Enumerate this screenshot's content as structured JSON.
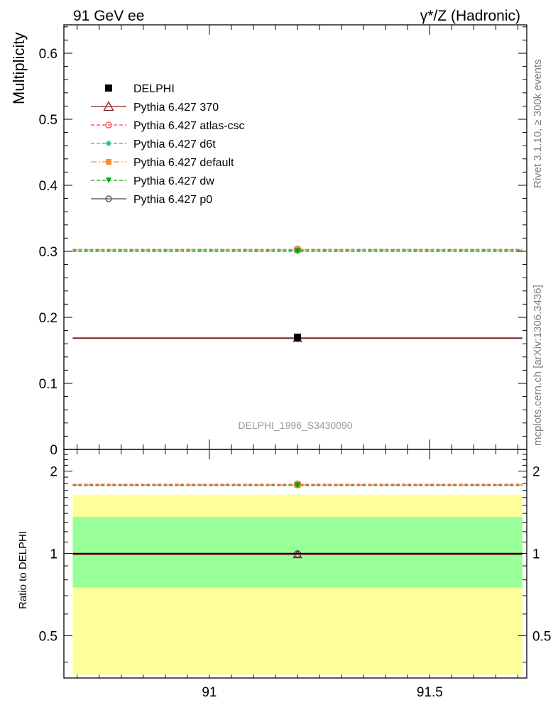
{
  "header": {
    "left_label": "91 GeV ee",
    "right_label": "γ*/Z (Hadronic)"
  },
  "side_labels": {
    "rivet": "Rivet 3.1.10, ≥ 300k events",
    "mcplots": "mcplots.cern.ch [arXiv:1306.3436]"
  },
  "analysis_id": "DELPHI_1996_S3430090",
  "chart_data": [
    {
      "panel": "main",
      "type": "scatter",
      "ylabel": "Multiplicity",
      "xlim": [
        90.67,
        91.72
      ],
      "ylim": [
        0,
        0.643
      ],
      "x_ticks": [
        91,
        91.5
      ],
      "x_tick_labels": [
        "91",
        "91.5"
      ],
      "y_ticks": [
        0,
        0.1,
        0.2,
        0.3,
        0.4,
        0.5,
        0.6
      ],
      "y_tick_labels": [
        "0",
        "0.1",
        "0.2",
        "0.3",
        "0.4",
        "0.5",
        "0.6"
      ],
      "bin": {
        "x": 91.2,
        "xlow": 90.69,
        "xhigh": 91.71
      },
      "legend_position": "top-left",
      "series": [
        {
          "name": "DELPHI",
          "y": 0.17,
          "color": "#000000",
          "marker": "filled-square",
          "line": "none"
        },
        {
          "name": "Pythia 6.427 370",
          "y": 0.168,
          "color": "#8b1a1a",
          "marker": "open-triangle",
          "line": "solid"
        },
        {
          "name": "Pythia 6.427 atlas-csc",
          "y": 0.303,
          "color": "#ff3b4e",
          "marker": "open-circle",
          "line": "dashed"
        },
        {
          "name": "Pythia 6.427 d6t",
          "y": 0.301,
          "color": "#19c38c",
          "marker": "star",
          "line": "dashed"
        },
        {
          "name": "Pythia 6.427 default",
          "y": 0.302,
          "color": "#ff8c2e",
          "marker": "filled-square",
          "line": "dashdot"
        },
        {
          "name": "Pythia 6.427 dw",
          "y": 0.3,
          "color": "#00aa00",
          "marker": "filled-triangle-down",
          "line": "dashed"
        },
        {
          "name": "Pythia 6.427 p0",
          "y": 0.169,
          "color": "#444444",
          "marker": "open-circle",
          "line": "solid"
        }
      ]
    },
    {
      "panel": "ratio",
      "type": "scatter",
      "ylabel": "Ratio to DELPHI",
      "xlim": [
        90.67,
        91.72
      ],
      "ylim": [
        0.35,
        2.4
      ],
      "log_y": true,
      "y_ticks": [
        0.5,
        1,
        2
      ],
      "y_tick_labels": [
        "0.5",
        "1",
        "2"
      ],
      "bands": [
        {
          "level": "2-sigma",
          "low": 0.36,
          "high": 1.64,
          "color": "#ffff99"
        },
        {
          "level": "1-sigma",
          "low": 0.75,
          "high": 1.36,
          "color": "#99ff99"
        }
      ],
      "series": [
        {
          "name": "Pythia 6.427 370",
          "y": 0.99
        },
        {
          "name": "Pythia 6.427 atlas-csc",
          "y": 1.79
        },
        {
          "name": "Pythia 6.427 d6t",
          "y": 1.78
        },
        {
          "name": "Pythia 6.427 default",
          "y": 1.78
        },
        {
          "name": "Pythia 6.427 dw",
          "y": 1.77
        },
        {
          "name": "Pythia 6.427 p0",
          "y": 0.995
        },
        {
          "name": "DELPHI",
          "y": 1.0
        }
      ]
    }
  ]
}
